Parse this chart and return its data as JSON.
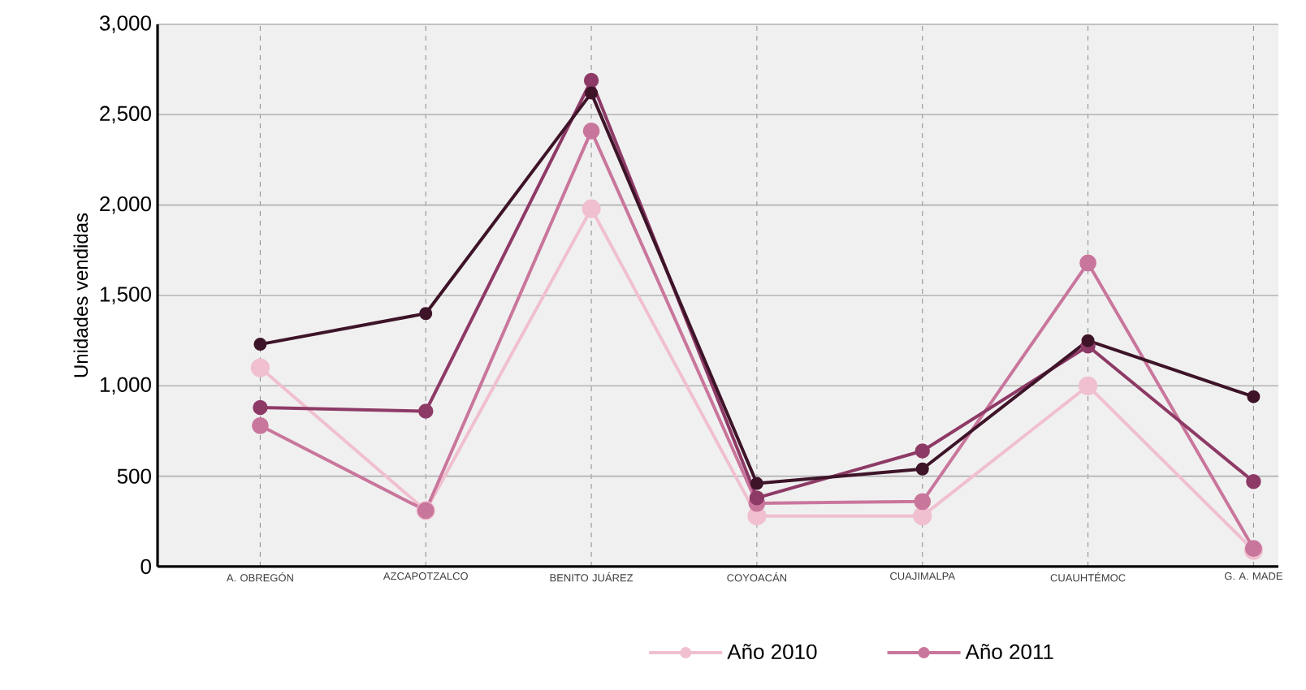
{
  "chart_data": {
    "type": "line",
    "ylabel": "Unidades vendidas",
    "categories": [
      "A. OBREGÓN",
      "AZCAPOTZALCO",
      "BENITO JUÁREZ",
      "COYOACÁN",
      "CUAJIMALPA",
      "CUAUHTÉMOC",
      "G. A. MADE"
    ],
    "series": [
      {
        "name": "Año 2010",
        "color": "#f0bfd0",
        "values": [
          1100,
          310,
          1980,
          280,
          280,
          1000,
          90
        ]
      },
      {
        "name": "Año 2011",
        "color": "#c9769c",
        "values": [
          780,
          310,
          2410,
          350,
          360,
          1680,
          100
        ]
      },
      {
        "color": "#8e3a66",
        "values": [
          880,
          860,
          2690,
          380,
          640,
          1220,
          470
        ]
      },
      {
        "color": "#3e1429",
        "values": [
          1230,
          1400,
          2620,
          460,
          540,
          1250,
          940
        ]
      }
    ],
    "ylim": [
      0,
      3000
    ],
    "yticks": [
      0,
      {
        "value": 500,
        "label": "500"
      },
      {
        "value": 1000,
        "label": "1,000"
      },
      {
        "value": 1500,
        "label": "1,500"
      },
      {
        "value": 2000,
        "label": "2,000"
      },
      {
        "value": 2500,
        "label": "2,500"
      },
      {
        "value": 3000,
        "label": "3,000"
      }
    ],
    "grid": true,
    "legend": "bottom",
    "marker": "circle",
    "line_style": "solid"
  }
}
